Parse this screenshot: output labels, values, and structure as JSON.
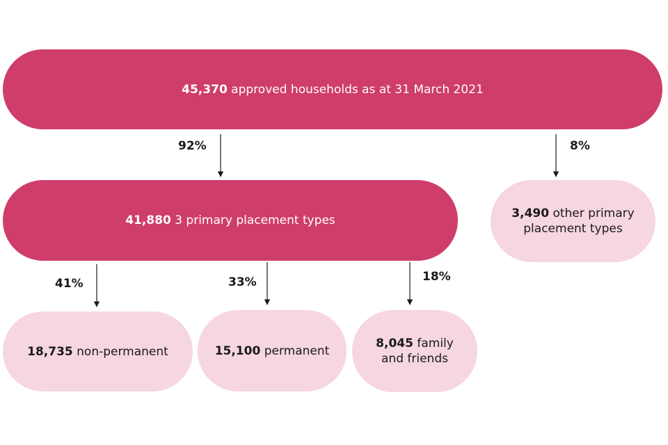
{
  "diagram": {
    "colors": {
      "primary": "#cf3d6a",
      "secondary": "#f6d6df",
      "arrow": "#1a1a1a"
    },
    "total": {
      "value": "45,370",
      "label": " approved households as at 31 March 2021"
    },
    "branches": {
      "primary_types": {
        "pct": "92%",
        "value": "41,880",
        "label": " 3 primary placement types"
      },
      "other_types": {
        "pct": "8%",
        "value": "3,490",
        "label_line1": " other primary",
        "label_line2": "placement types"
      }
    },
    "subtypes": [
      {
        "pct": "41%",
        "value": "18,735",
        "label": " non-permanent"
      },
      {
        "pct": "33%",
        "value": "15,100",
        "label": " permanent"
      },
      {
        "pct": "18%",
        "value": "8,045",
        "label_line1": " family",
        "label_line2": "and friends"
      }
    ]
  }
}
